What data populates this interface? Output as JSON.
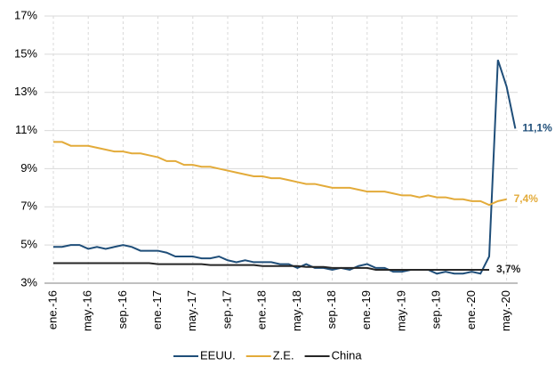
{
  "chart_data": {
    "type": "line",
    "categories": [
      "ene.-16",
      null,
      null,
      null,
      "may.-16",
      null,
      null,
      null,
      "sep.-16",
      null,
      null,
      null,
      "ene.-17",
      null,
      null,
      null,
      "may.-17",
      null,
      null,
      null,
      "sep.-17",
      null,
      null,
      null,
      "ene.-18",
      null,
      null,
      null,
      "may.-18",
      null,
      null,
      null,
      "sep.-18",
      null,
      null,
      null,
      "ene.-19",
      null,
      null,
      null,
      "may.-19",
      null,
      null,
      null,
      "sep.-19",
      null,
      null,
      null,
      "ene.-20",
      null,
      null,
      null,
      "may.-20",
      null
    ],
    "series": [
      {
        "name": "EEUU.",
        "color": "#1f4e79",
        "values": [
          4.9,
          4.9,
          5.0,
          5.0,
          4.8,
          4.9,
          4.8,
          4.9,
          5.0,
          4.9,
          4.7,
          4.7,
          4.7,
          4.6,
          4.4,
          4.4,
          4.4,
          4.3,
          4.3,
          4.4,
          4.2,
          4.1,
          4.2,
          4.1,
          4.1,
          4.1,
          4.0,
          4.0,
          3.8,
          4.0,
          3.8,
          3.8,
          3.7,
          3.8,
          3.7,
          3.9,
          4.0,
          3.8,
          3.8,
          3.6,
          3.6,
          3.7,
          3.7,
          3.7,
          3.5,
          3.6,
          3.5,
          3.5,
          3.6,
          3.5,
          4.4,
          14.7,
          13.3,
          11.1
        ],
        "value_labels": [
          null,
          null,
          null,
          null,
          null,
          null,
          null,
          null,
          null,
          null,
          null,
          null,
          null,
          null,
          null,
          null,
          null,
          null,
          null,
          null,
          null,
          null,
          null,
          null,
          null,
          null,
          null,
          null,
          null,
          null,
          null,
          null,
          null,
          null,
          null,
          null,
          null,
          null,
          null,
          null,
          null,
          null,
          null,
          null,
          null,
          null,
          null,
          null,
          null,
          null,
          null,
          null,
          null,
          "11,1%"
        ]
      },
      {
        "name": "Z.E.",
        "color": "#e3ab3a",
        "values": [
          10.4,
          10.4,
          10.2,
          10.2,
          10.2,
          10.1,
          10.0,
          9.9,
          9.9,
          9.8,
          9.8,
          9.7,
          9.6,
          9.4,
          9.4,
          9.2,
          9.2,
          9.1,
          9.1,
          9.0,
          8.9,
          8.8,
          8.7,
          8.6,
          8.6,
          8.5,
          8.5,
          8.4,
          8.3,
          8.2,
          8.2,
          8.1,
          8.0,
          8.0,
          8.0,
          7.9,
          7.8,
          7.8,
          7.8,
          7.7,
          7.6,
          7.6,
          7.5,
          7.6,
          7.5,
          7.5,
          7.4,
          7.4,
          7.3,
          7.3,
          7.1,
          7.3,
          7.4,
          null
        ],
        "value_labels": [
          null,
          null,
          null,
          null,
          null,
          null,
          null,
          null,
          null,
          null,
          null,
          null,
          null,
          null,
          null,
          null,
          null,
          null,
          null,
          null,
          null,
          null,
          null,
          null,
          null,
          null,
          null,
          null,
          null,
          null,
          null,
          null,
          null,
          null,
          null,
          null,
          null,
          null,
          null,
          null,
          null,
          null,
          null,
          null,
          null,
          null,
          null,
          null,
          null,
          null,
          null,
          null,
          "7,4%",
          null
        ]
      },
      {
        "name": "China",
        "color": "#262626",
        "values": [
          4.05,
          4.05,
          4.05,
          4.05,
          4.05,
          4.05,
          4.05,
          4.05,
          4.05,
          4.05,
          4.05,
          4.05,
          4.0,
          4.0,
          4.0,
          4.0,
          4.0,
          4.0,
          3.95,
          3.95,
          3.95,
          3.95,
          3.95,
          3.95,
          3.9,
          3.9,
          3.9,
          3.9,
          3.9,
          3.85,
          3.85,
          3.85,
          3.8,
          3.8,
          3.8,
          3.8,
          3.8,
          3.7,
          3.7,
          3.7,
          3.7,
          3.7,
          3.7,
          3.7,
          3.7,
          3.7,
          3.7,
          3.7,
          3.7,
          3.7,
          3.7,
          null,
          null,
          null
        ],
        "value_labels": [
          null,
          null,
          null,
          null,
          null,
          null,
          null,
          null,
          null,
          null,
          null,
          null,
          null,
          null,
          null,
          null,
          null,
          null,
          null,
          null,
          null,
          null,
          null,
          null,
          null,
          null,
          null,
          null,
          null,
          null,
          null,
          null,
          null,
          null,
          null,
          null,
          null,
          null,
          null,
          null,
          null,
          null,
          null,
          null,
          null,
          null,
          null,
          null,
          null,
          null,
          "3,7%",
          null,
          null,
          null
        ]
      }
    ],
    "ylim": [
      3,
      17
    ],
    "yticks": [
      {
        "value": 3,
        "label": "3%"
      },
      {
        "value": 5,
        "label": "5%"
      },
      {
        "value": 7,
        "label": "7%"
      },
      {
        "value": 9,
        "label": "9%"
      },
      {
        "value": 11,
        "label": "11%"
      },
      {
        "value": 13,
        "label": "13%"
      },
      {
        "value": 15,
        "label": "15%"
      },
      {
        "value": 17,
        "label": "17%"
      }
    ],
    "grid": true,
    "legend": "bottom"
  }
}
